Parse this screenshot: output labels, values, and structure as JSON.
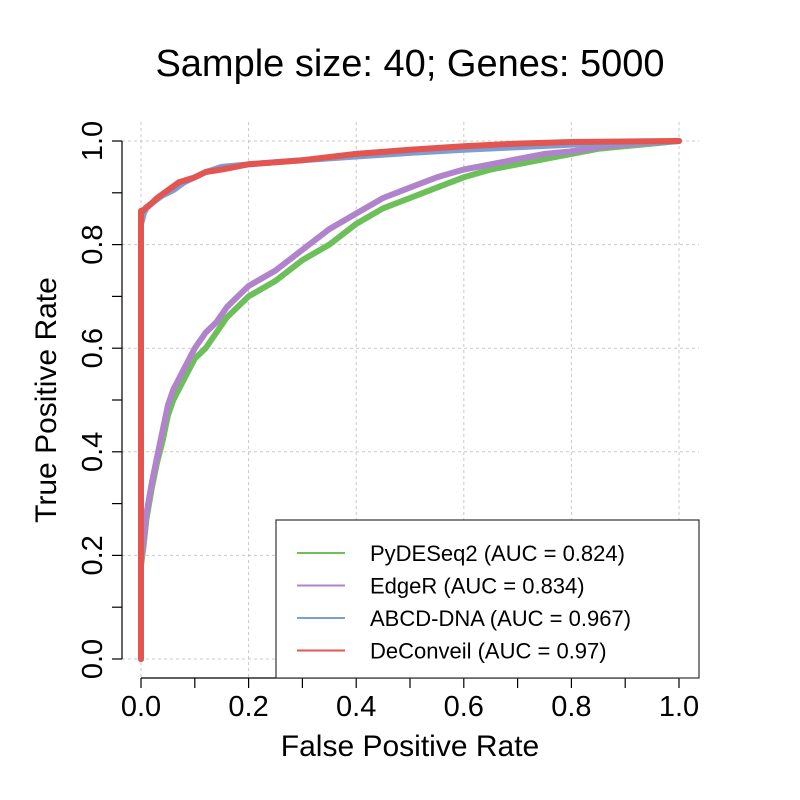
{
  "chart_data": {
    "type": "line",
    "title": "Sample size: 40; Genes: 5000",
    "xlabel": "False Positive Rate",
    "ylabel": "True Positive Rate",
    "xlim": [
      0,
      1
    ],
    "ylim": [
      0,
      1
    ],
    "x_ticks": [
      "0.0",
      "0.2",
      "0.4",
      "0.6",
      "0.8",
      "1.0"
    ],
    "y_ticks": [
      "0.0",
      "0.2",
      "0.4",
      "0.6",
      "0.8",
      "1.0"
    ],
    "grid": true,
    "legend_position": "bottom-right",
    "series": [
      {
        "name": "PyDESeq2 (AUC = 0.824)",
        "color": "#6dbf5a",
        "x": [
          0,
          0,
          0.005,
          0.01,
          0.015,
          0.02,
          0.03,
          0.04,
          0.05,
          0.06,
          0.08,
          0.1,
          0.12,
          0.14,
          0.16,
          0.18,
          0.2,
          0.25,
          0.3,
          0.35,
          0.4,
          0.45,
          0.5,
          0.55,
          0.6,
          0.65,
          0.7,
          0.75,
          0.8,
          0.85,
          0.9,
          0.95,
          1.0
        ],
        "y": [
          0,
          0.18,
          0.22,
          0.27,
          0.3,
          0.33,
          0.38,
          0.42,
          0.47,
          0.5,
          0.54,
          0.58,
          0.6,
          0.63,
          0.66,
          0.68,
          0.7,
          0.73,
          0.77,
          0.8,
          0.84,
          0.87,
          0.89,
          0.91,
          0.93,
          0.945,
          0.955,
          0.965,
          0.975,
          0.985,
          0.99,
          0.995,
          1.0
        ]
      },
      {
        "name": "EdgeR (AUC = 0.834)",
        "color": "#b083cc",
        "x": [
          0,
          0,
          0.005,
          0.01,
          0.015,
          0.02,
          0.03,
          0.04,
          0.05,
          0.06,
          0.08,
          0.1,
          0.12,
          0.14,
          0.16,
          0.18,
          0.2,
          0.25,
          0.3,
          0.35,
          0.4,
          0.45,
          0.5,
          0.55,
          0.6,
          0.65,
          0.7,
          0.75,
          0.8,
          0.85,
          0.9,
          0.95,
          1.0
        ],
        "y": [
          0,
          0.19,
          0.23,
          0.28,
          0.31,
          0.34,
          0.39,
          0.44,
          0.49,
          0.52,
          0.56,
          0.6,
          0.63,
          0.65,
          0.68,
          0.7,
          0.72,
          0.75,
          0.79,
          0.83,
          0.86,
          0.89,
          0.91,
          0.93,
          0.945,
          0.955,
          0.965,
          0.975,
          0.98,
          0.988,
          0.993,
          0.997,
          1.0
        ]
      },
      {
        "name": "ABCD-DNA (AUC = 0.967)",
        "color": "#7b9fd4",
        "x": [
          0,
          0,
          0.003,
          0.005,
          0.01,
          0.02,
          0.04,
          0.06,
          0.08,
          0.1,
          0.12,
          0.15,
          0.2,
          0.3,
          0.4,
          0.5,
          0.6,
          0.7,
          0.8,
          0.9,
          1.0
        ],
        "y": [
          0,
          0.84,
          0.85,
          0.86,
          0.87,
          0.88,
          0.895,
          0.905,
          0.92,
          0.93,
          0.94,
          0.95,
          0.955,
          0.963,
          0.97,
          0.977,
          0.983,
          0.988,
          0.993,
          0.997,
          1.0
        ]
      },
      {
        "name": "DeConveil (AUC = 0.97)",
        "color": "#e25551",
        "x": [
          0,
          0,
          0.003,
          0.006,
          0.01,
          0.02,
          0.03,
          0.05,
          0.07,
          0.1,
          0.12,
          0.15,
          0.2,
          0.3,
          0.4,
          0.5,
          0.6,
          0.7,
          0.8,
          0.9,
          1.0
        ],
        "y": [
          0,
          0.865,
          0.865,
          0.868,
          0.872,
          0.88,
          0.89,
          0.905,
          0.92,
          0.93,
          0.94,
          0.945,
          0.955,
          0.963,
          0.975,
          0.983,
          0.99,
          0.995,
          0.998,
          0.999,
          1.0
        ]
      }
    ]
  }
}
